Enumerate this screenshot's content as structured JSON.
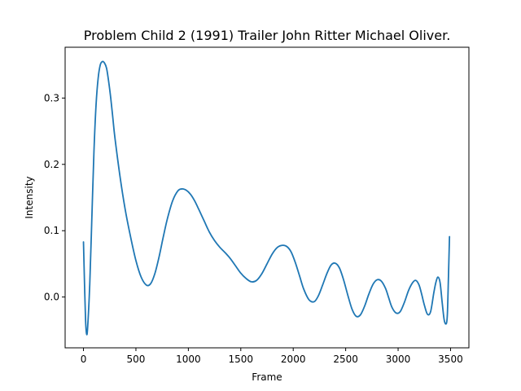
{
  "chart_data": {
    "type": "line",
    "title": "Problem Child 2 (1991) Trailer  John Ritter  Michael Oliver.",
    "xlabel": "Frame",
    "ylabel": "Intensity",
    "xlim": [
      -175,
      3675
    ],
    "ylim": [
      -0.0766,
      0.3766
    ],
    "x_ticks": [
      0,
      500,
      1000,
      1500,
      2000,
      2500,
      3000,
      3500
    ],
    "x_tick_labels": [
      "0",
      "500",
      "1000",
      "1500",
      "2000",
      "2500",
      "3000",
      "3500"
    ],
    "y_ticks": [
      0.0,
      0.1,
      0.2,
      0.3
    ],
    "y_tick_labels": [
      "0.0",
      "0.1",
      "0.2",
      "0.3"
    ],
    "grid": false,
    "colors": {
      "line": "#1f77b4"
    },
    "series": [
      {
        "x": [
          0,
          10,
          20,
          30,
          40,
          60,
          80,
          100,
          120,
          140,
          160,
          180,
          200,
          220,
          240,
          260,
          280,
          300,
          350,
          400,
          450,
          500,
          550,
          600,
          640,
          680,
          720,
          760,
          800,
          850,
          900,
          940,
          980,
          1020,
          1060,
          1100,
          1150,
          1200,
          1250,
          1300,
          1350,
          1400,
          1450,
          1500,
          1550,
          1600,
          1650,
          1700,
          1750,
          1800,
          1850,
          1900,
          1940,
          1980,
          2020,
          2060,
          2100,
          2150,
          2200,
          2240,
          2280,
          2320,
          2360,
          2400,
          2440,
          2480,
          2520,
          2560,
          2600,
          2640,
          2680,
          2720,
          2760,
          2800,
          2840,
          2880,
          2910,
          2940,
          2980,
          3020,
          3060,
          3100,
          3140,
          3170,
          3200,
          3225,
          3250,
          3280,
          3310,
          3340,
          3360,
          3380,
          3400,
          3420,
          3440,
          3460,
          3470,
          3480,
          3490
        ],
        "y": [
          0.083,
          0.02,
          -0.035,
          -0.056,
          -0.045,
          0.02,
          0.12,
          0.22,
          0.29,
          0.33,
          0.35,
          0.355,
          0.353,
          0.345,
          0.325,
          0.3,
          0.27,
          0.24,
          0.18,
          0.13,
          0.09,
          0.055,
          0.03,
          0.018,
          0.02,
          0.035,
          0.06,
          0.09,
          0.118,
          0.145,
          0.16,
          0.163,
          0.161,
          0.155,
          0.145,
          0.132,
          0.115,
          0.098,
          0.085,
          0.075,
          0.067,
          0.058,
          0.047,
          0.036,
          0.028,
          0.023,
          0.025,
          0.035,
          0.05,
          0.065,
          0.075,
          0.078,
          0.076,
          0.068,
          0.052,
          0.032,
          0.012,
          -0.004,
          -0.007,
          0.002,
          0.018,
          0.035,
          0.048,
          0.051,
          0.044,
          0.026,
          0.003,
          -0.018,
          -0.029,
          -0.027,
          -0.014,
          0.004,
          0.019,
          0.026,
          0.024,
          0.013,
          -0.001,
          -0.015,
          -0.024,
          -0.022,
          -0.008,
          0.01,
          0.022,
          0.025,
          0.018,
          0.004,
          -0.012,
          -0.026,
          -0.022,
          0.006,
          0.022,
          0.03,
          0.022,
          -0.008,
          -0.035,
          -0.04,
          -0.025,
          0.03,
          0.091
        ]
      }
    ]
  }
}
